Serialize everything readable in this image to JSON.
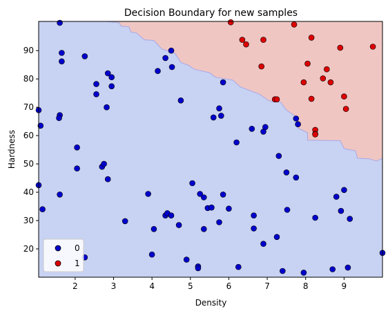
{
  "chart_data": {
    "type": "scatter",
    "title": "Decision Boundary for new samples",
    "xlabel": "Density",
    "ylabel": "Hardness",
    "xlim": [
      1.05,
      10.0
    ],
    "ylim": [
      10.0,
      100.3
    ],
    "xticks": [
      2,
      3,
      4,
      5,
      6,
      7,
      8,
      9
    ],
    "yticks": [
      20,
      30,
      40,
      50,
      60,
      70,
      80,
      90
    ],
    "legend_placement": "lower-left",
    "grid": false,
    "colors": {
      "class0_point": "#0000cc",
      "class1_point": "#dd0000",
      "region0": "#c8d2f2",
      "region1": "#f0c6c3",
      "boundary": "#a8a8e8"
    },
    "decision_boundary": [
      [
        2.8,
        100.3
      ],
      [
        3.15,
        99.8
      ],
      [
        3.2,
        98.6
      ],
      [
        3.4,
        98.4
      ],
      [
        3.45,
        96.6
      ],
      [
        3.6,
        96.2
      ],
      [
        3.8,
        93.8
      ],
      [
        4.05,
        93.6
      ],
      [
        4.25,
        90.6
      ],
      [
        4.6,
        89.0
      ],
      [
        4.75,
        85.8
      ],
      [
        4.95,
        84.8
      ],
      [
        5.1,
        83.4
      ],
      [
        5.5,
        82.2
      ],
      [
        5.65,
        80.6
      ],
      [
        6.1,
        79.6
      ],
      [
        6.3,
        77.2
      ],
      [
        6.8,
        74.6
      ],
      [
        7.05,
        72.2
      ],
      [
        7.35,
        71.8
      ],
      [
        7.5,
        69.0
      ],
      [
        7.8,
        66.2
      ],
      [
        7.8,
        62.6
      ],
      [
        8.05,
        61.0
      ],
      [
        8.05,
        58.4
      ],
      [
        8.9,
        58.2
      ],
      [
        9.0,
        55.4
      ],
      [
        9.3,
        54.6
      ],
      [
        9.35,
        52.0
      ],
      [
        9.65,
        51.8
      ],
      [
        9.85,
        51.0
      ],
      [
        10.0,
        52.0
      ]
    ],
    "series": [
      {
        "name": "0",
        "points": [
          [
            1.05,
            69.0
          ],
          [
            1.1,
            63.5
          ],
          [
            1.05,
            42.5
          ],
          [
            1.15,
            34.0
          ],
          [
            1.6,
            99.8
          ],
          [
            1.65,
            89.2
          ],
          [
            1.65,
            86.2
          ],
          [
            1.6,
            67.2
          ],
          [
            1.58,
            66.2
          ],
          [
            1.6,
            39.2
          ],
          [
            2.05,
            55.8
          ],
          [
            2.05,
            48.4
          ],
          [
            2.25,
            88.0
          ],
          [
            2.25,
            17.0
          ],
          [
            2.55,
            78.2
          ],
          [
            2.55,
            74.6
          ],
          [
            2.7,
            49.0
          ],
          [
            2.75,
            50.0
          ],
          [
            2.85,
            82.0
          ],
          [
            2.95,
            80.6
          ],
          [
            2.95,
            77.4
          ],
          [
            2.82,
            70.0
          ],
          [
            2.85,
            44.6
          ],
          [
            3.3,
            29.8
          ],
          [
            3.9,
            39.4
          ],
          [
            4.0,
            18.0
          ],
          [
            4.05,
            27.0
          ],
          [
            4.15,
            82.8
          ],
          [
            4.35,
            87.4
          ],
          [
            4.5,
            90.0
          ],
          [
            4.52,
            84.2
          ],
          [
            4.35,
            31.8
          ],
          [
            4.4,
            32.6
          ],
          [
            4.5,
            31.8
          ],
          [
            4.75,
            72.4
          ],
          [
            4.7,
            28.4
          ],
          [
            4.9,
            16.2
          ],
          [
            5.05,
            43.2
          ],
          [
            5.2,
            13.8
          ],
          [
            5.2,
            13.2
          ],
          [
            5.25,
            39.4
          ],
          [
            5.35,
            38.2
          ],
          [
            5.35,
            27.0
          ],
          [
            5.45,
            34.4
          ],
          [
            5.55,
            34.6
          ],
          [
            5.6,
            66.4
          ],
          [
            5.75,
            69.6
          ],
          [
            5.8,
            67.0
          ],
          [
            5.85,
            78.8
          ],
          [
            5.75,
            29.4
          ],
          [
            5.85,
            39.2
          ],
          [
            6.0,
            34.2
          ],
          [
            6.2,
            57.6
          ],
          [
            6.25,
            13.6
          ],
          [
            6.6,
            62.4
          ],
          [
            6.65,
            31.8
          ],
          [
            6.65,
            27.2
          ],
          [
            6.9,
            61.4
          ],
          [
            6.95,
            63.0
          ],
          [
            6.9,
            21.8
          ],
          [
            7.25,
            24.2
          ],
          [
            7.3,
            52.8
          ],
          [
            7.4,
            12.2
          ],
          [
            7.5,
            47.0
          ],
          [
            7.52,
            33.8
          ],
          [
            7.75,
            66.0
          ],
          [
            7.8,
            64.0
          ],
          [
            7.75,
            45.2
          ],
          [
            7.95,
            11.6
          ],
          [
            8.25,
            31.0
          ],
          [
            8.7,
            12.8
          ],
          [
            8.8,
            38.4
          ],
          [
            8.92,
            33.4
          ],
          [
            9.0,
            40.8
          ],
          [
            9.1,
            13.4
          ],
          [
            9.15,
            30.6
          ],
          [
            10.0,
            18.6
          ]
        ]
      },
      {
        "name": "1",
        "points": [
          [
            6.05,
            100.0
          ],
          [
            6.35,
            93.8
          ],
          [
            6.45,
            92.2
          ],
          [
            6.9,
            93.8
          ],
          [
            7.7,
            99.2
          ],
          [
            6.85,
            84.4
          ],
          [
            7.2,
            72.8
          ],
          [
            7.25,
            72.8
          ],
          [
            7.95,
            78.8
          ],
          [
            8.05,
            85.4
          ],
          [
            8.15,
            94.6
          ],
          [
            8.15,
            73.0
          ],
          [
            8.25,
            62.0
          ],
          [
            8.25,
            60.6
          ],
          [
            8.25,
            60.4
          ],
          [
            8.45,
            80.2
          ],
          [
            8.55,
            83.4
          ],
          [
            8.65,
            78.8
          ],
          [
            8.9,
            91.0
          ],
          [
            9.0,
            73.8
          ],
          [
            9.05,
            69.4
          ],
          [
            9.75,
            91.4
          ]
        ]
      }
    ]
  }
}
